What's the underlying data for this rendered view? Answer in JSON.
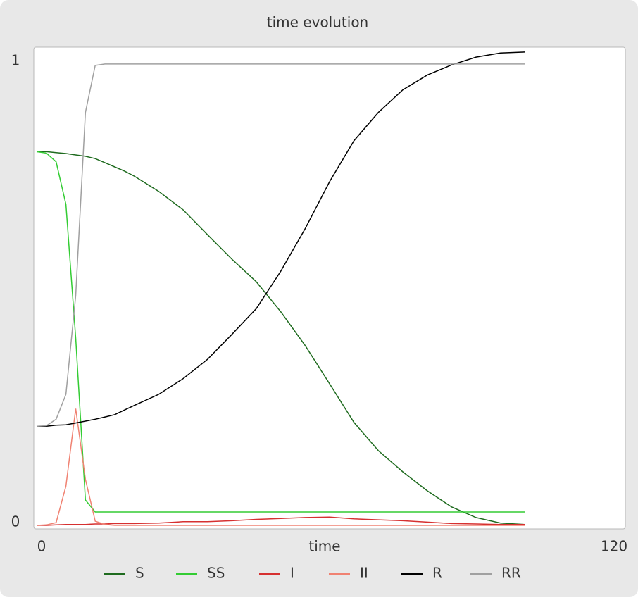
{
  "chart_data": {
    "type": "line",
    "title": "time evolution",
    "x_label": "time",
    "x": [
      0,
      2,
      4,
      6,
      8,
      10,
      12,
      14,
      16,
      18,
      20,
      25,
      30,
      35,
      40,
      45,
      50,
      55,
      60,
      65,
      70,
      75,
      80,
      85,
      90,
      95,
      100
    ],
    "xlim": [
      0,
      120
    ],
    "xticks": [
      0,
      120
    ],
    "ylim": [
      0,
      1.035
    ],
    "yticks": [
      0,
      1
    ],
    "grid": false,
    "legend": "bottom",
    "series": [
      {
        "name": "S",
        "color": "#1f6b1f",
        "values": [
          0.81,
          0.81,
          0.808,
          0.806,
          0.803,
          0.8,
          0.795,
          0.786,
          0.777,
          0.768,
          0.757,
          0.724,
          0.684,
          0.63,
          0.577,
          0.528,
          0.463,
          0.39,
          0.307,
          0.223,
          0.162,
          0.116,
          0.075,
          0.04,
          0.017,
          0.005,
          0.002
        ]
      },
      {
        "name": "SS",
        "color": "#33cc33",
        "values": [
          0.81,
          0.807,
          0.788,
          0.696,
          0.406,
          0.055,
          0.029,
          0.029,
          0.029,
          0.029,
          0.029,
          0.029,
          0.029,
          0.029,
          0.029,
          0.029,
          0.029,
          0.029,
          0.029,
          0.029,
          0.029,
          0.029,
          0.029,
          0.029,
          0.029,
          0.029,
          0.029
        ]
      },
      {
        "name": "I",
        "color": "#d63030",
        "values": [
          0,
          0,
          0.001,
          0.002,
          0.002,
          0.002,
          0.003,
          0.003,
          0.004,
          0.004,
          0.004,
          0.005,
          0.008,
          0.008,
          0.01,
          0.013,
          0.015,
          0.017,
          0.018,
          0.014,
          0.012,
          0.01,
          0.007,
          0.004,
          0.003,
          0.002,
          0.002
        ]
      },
      {
        "name": "II",
        "color": "#f08272",
        "values": [
          0,
          0.001,
          0.006,
          0.085,
          0.253,
          0.1,
          0.009,
          0.002,
          0,
          0,
          0,
          0,
          0,
          0,
          0,
          0,
          0,
          0,
          0,
          0,
          0,
          0,
          0,
          0,
          0,
          0,
          0
        ]
      },
      {
        "name": "R",
        "color": "#000000",
        "values": [
          0.215,
          0.215,
          0.217,
          0.218,
          0.222,
          0.226,
          0.23,
          0.235,
          0.24,
          0.25,
          0.26,
          0.284,
          0.318,
          0.36,
          0.414,
          0.47,
          0.551,
          0.643,
          0.745,
          0.834,
          0.895,
          0.944,
          0.976,
          0.998,
          1.015,
          1.024,
          1.026
        ]
      },
      {
        "name": "RR",
        "color": "#a0a0a0",
        "values": [
          0.215,
          0.216,
          0.23,
          0.284,
          0.498,
          0.895,
          0.997,
          1,
          1,
          1,
          1,
          1,
          1,
          1,
          1,
          1,
          1,
          1,
          1,
          1,
          1,
          1,
          1,
          1,
          1,
          1,
          1
        ]
      }
    ]
  }
}
